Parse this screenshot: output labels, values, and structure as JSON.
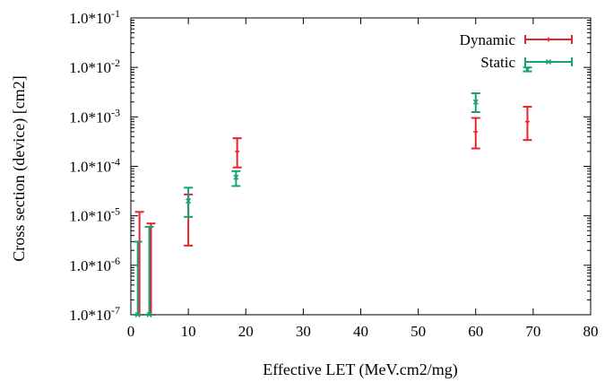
{
  "chart_data": {
    "type": "scatter",
    "xlabel": "Effective LET (MeV.cm2/mg)",
    "ylabel": "Cross section (device) [cm2]",
    "xlim": [
      0,
      80
    ],
    "ylim": [
      1e-07,
      0.1
    ],
    "yscale": "log",
    "grid": false,
    "legend_position": "top-right",
    "x_ticks": [
      {
        "value": 0,
        "label": "0"
      },
      {
        "value": 10,
        "label": "10"
      },
      {
        "value": 20,
        "label": "20"
      },
      {
        "value": 30,
        "label": "30"
      },
      {
        "value": 40,
        "label": "40"
      },
      {
        "value": 50,
        "label": "50"
      },
      {
        "value": 60,
        "label": "60"
      },
      {
        "value": 70,
        "label": "70"
      },
      {
        "value": 80,
        "label": "80"
      }
    ],
    "y_ticks": [
      {
        "value": 1e-07,
        "base": "1.0*10",
        "exp": "-7"
      },
      {
        "value": 1e-06,
        "base": "1.0*10",
        "exp": "-6"
      },
      {
        "value": 1e-05,
        "base": "1.0*10",
        "exp": "-5"
      },
      {
        "value": 0.0001,
        "base": "1.0*10",
        "exp": "-4"
      },
      {
        "value": 0.001,
        "base": "1.0*10",
        "exp": "-3"
      },
      {
        "value": 0.01,
        "base": "1.0*10",
        "exp": "-2"
      },
      {
        "value": 0.1,
        "base": "1.0*10",
        "exp": "-1"
      }
    ],
    "series": [
      {
        "name": "Dynamic",
        "color": "#e8232a",
        "marker": "plus",
        "points": [
          {
            "x": 1.5,
            "y": 1e-07,
            "ylow": 1e-07,
            "yhigh": 1.2e-05
          },
          {
            "x": 3.5,
            "y": 1e-07,
            "ylow": 1e-07,
            "yhigh": 7e-06
          },
          {
            "x": 10,
            "y": 9.5e-06,
            "ylow": 2.5e-06,
            "yhigh": 2.7e-05
          },
          {
            "x": 18.5,
            "y": 0.0002,
            "ylow": 9.5e-05,
            "yhigh": 0.00037
          },
          {
            "x": 60,
            "y": 0.0005,
            "ylow": 0.00023,
            "yhigh": 0.00095
          },
          {
            "x": 69,
            "y": 0.0008,
            "ylow": 0.00034,
            "yhigh": 0.0016
          }
        ]
      },
      {
        "name": "Static",
        "color": "#1a9e77",
        "marker": "cross",
        "points": [
          {
            "x": 1.2,
            "y": 1e-07,
            "ylow": 1e-07,
            "yhigh": 3e-06
          },
          {
            "x": 3.2,
            "y": 1e-07,
            "ylow": 1e-07,
            "yhigh": 6e-06
          },
          {
            "x": 10,
            "y": 2e-05,
            "ylow": 9.5e-06,
            "yhigh": 3.7e-05
          },
          {
            "x": 18.3,
            "y": 6e-05,
            "ylow": 4e-05,
            "yhigh": 8e-05
          },
          {
            "x": 60,
            "y": 0.002,
            "ylow": 0.00125,
            "yhigh": 0.003
          },
          {
            "x": 69,
            "y": 0.009,
            "ylow": 0.0083,
            "yhigh": 0.01
          }
        ]
      }
    ]
  }
}
